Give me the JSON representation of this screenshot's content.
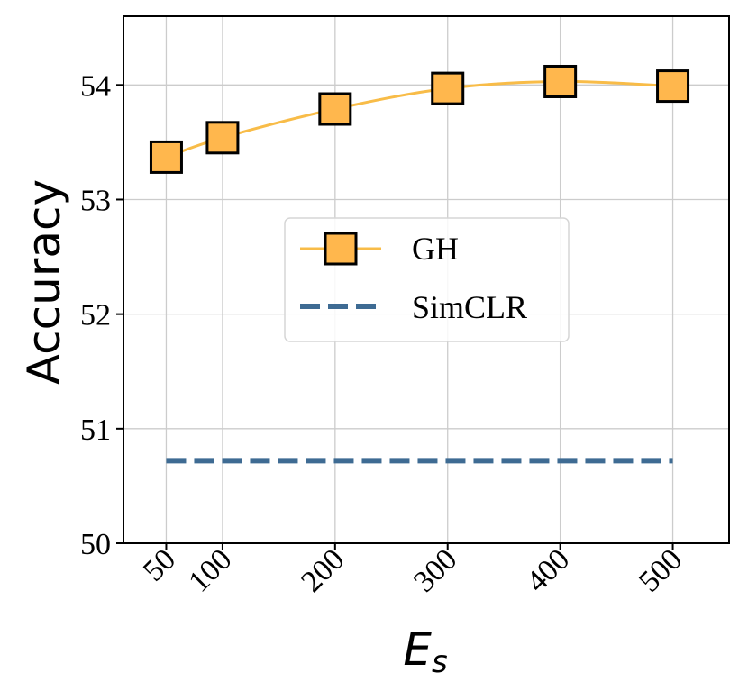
{
  "chart_data": {
    "type": "line",
    "title": "",
    "xlabel": "E",
    "xlabel_subscript": "s",
    "ylabel": "Accuracy",
    "x": [
      50,
      100,
      200,
      300,
      400,
      500
    ],
    "x_tick_labels": [
      "50",
      "100",
      "200",
      "300",
      "400",
      "500"
    ],
    "xlim": [
      12,
      550
    ],
    "ylim": [
      50,
      54.6
    ],
    "y_ticks": [
      50,
      51,
      52,
      53,
      54
    ],
    "y_tick_labels": [
      "50",
      "51",
      "52",
      "53",
      "54"
    ],
    "grid": true,
    "legend_position": "center",
    "series": [
      {
        "name": "GH",
        "style": "solid-line-square-markers",
        "color": "#F8BC48",
        "marker_color": "#FFB74D",
        "values": [
          53.37,
          53.54,
          53.79,
          53.97,
          54.03,
          53.99
        ]
      },
      {
        "name": "SimCLR",
        "style": "dashed",
        "color": "#3E6B93",
        "values": [
          50.72,
          50.72,
          50.72,
          50.72,
          50.72,
          50.72
        ]
      }
    ]
  }
}
